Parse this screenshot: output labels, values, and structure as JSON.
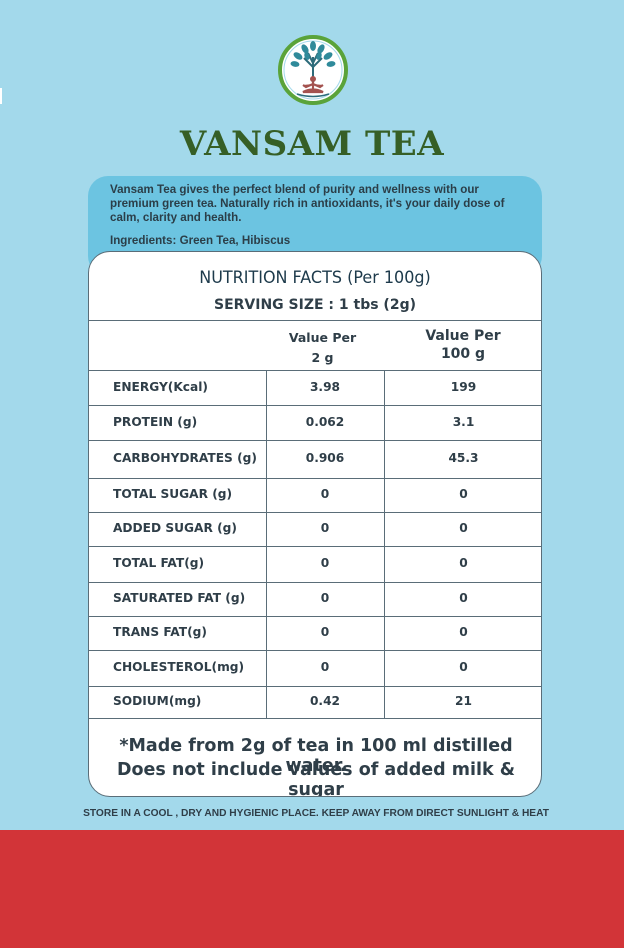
{
  "brand": {
    "name": "VANSAM TEA"
  },
  "intro": {
    "description": "Vansam Tea gives the perfect blend of purity and wellness with our premium green tea. Naturally rich in antioxidants, it's your daily dose of calm, clarity and health.",
    "ingredients": "Ingredients: Green Tea, Hibiscus"
  },
  "nutrition": {
    "title": "NUTRITION FACTS (Per 100g)",
    "serving": "SERVING SIZE : 1 tbs (2g)",
    "headers": {
      "col1_line1": "Value Per",
      "col1_line2": "2 g",
      "col2_line1": "Value Per",
      "col2_line2": "100 g"
    },
    "rows": [
      {
        "label": "ENERGY(Kcal)",
        "v1": "3.98",
        "v2": "199"
      },
      {
        "label": "PROTEIN (g)",
        "v1": "0.062",
        "v2": "3.1"
      },
      {
        "label": "CARBOHYDRATES (g)",
        "v1": "0.906",
        "v2": "45.3"
      },
      {
        "label": "TOTAL SUGAR (g)",
        "v1": "0",
        "v2": "0"
      },
      {
        "label": "ADDED SUGAR (g)",
        "v1": "0",
        "v2": "0"
      },
      {
        "label": "TOTAL FAT(g)",
        "v1": "0",
        "v2": "0"
      },
      {
        "label": "SATURATED FAT (g)",
        "v1": "0",
        "v2": "0"
      },
      {
        "label": "TRANS FAT(g)",
        "v1": "0",
        "v2": "0"
      },
      {
        "label": "CHOLESTEROL(mg)",
        "v1": "0",
        "v2": "0"
      },
      {
        "label": "SODIUM(mg)",
        "v1": "0.42",
        "v2": "21"
      }
    ],
    "footnote_line1": "*Made from 2g of tea in 100 ml distilled water.",
    "footnote_line2": "Does not include values of added milk & sugar"
  },
  "storage": {
    "text": "STORE IN A COOL , DRY AND HYGIENIC PLACE. KEEP AWAY FROM DIRECT SUNLIGHT & HEAT"
  },
  "colors": {
    "background": "#a3d9eb",
    "panel": "#6cc4e1",
    "brand_green": "#365f26",
    "band_red": "#d23438"
  }
}
